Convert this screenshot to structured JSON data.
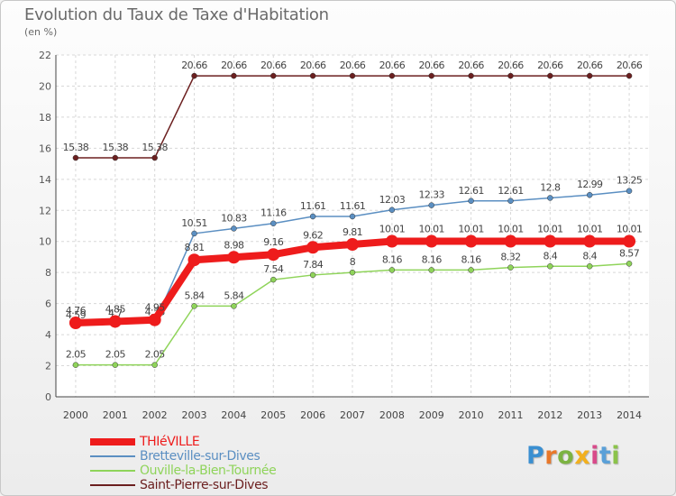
{
  "title": "Evolution du Taux de Taxe d'Habitation",
  "unit_label": "(en %)",
  "logo_text": [
    "P",
    "r",
    "o",
    "x",
    "i",
    "t",
    "i"
  ],
  "chart_data": {
    "type": "line",
    "title": "Evolution du Taux de Taxe d'Habitation",
    "ylabel": "(en %)",
    "xlabel": "",
    "ylim": [
      0,
      22
    ],
    "yticks": [
      0,
      2,
      4,
      6,
      8,
      10,
      12,
      14,
      16,
      18,
      20,
      22
    ],
    "grid": true,
    "legend_position": "bottom-left",
    "categories": [
      "2000",
      "2001",
      "2002",
      "2003",
      "2004",
      "2005",
      "2006",
      "2007",
      "2008",
      "2009",
      "2010",
      "2011",
      "2012",
      "2013",
      "2014"
    ],
    "series": [
      {
        "name": "Saint-Pierre-sur-Dives",
        "color": "#6b1f1f",
        "values": [
          15.38,
          15.38,
          15.38,
          20.66,
          20.66,
          20.66,
          20.66,
          20.66,
          20.66,
          20.66,
          20.66,
          20.66,
          20.66,
          20.66,
          20.66
        ],
        "labels": [
          "15.38",
          "15.38",
          "15.38",
          "20.66",
          "20.66",
          "20.66",
          "20.66",
          "20.66",
          "20.66",
          "20.66",
          "20.66",
          "20.66",
          "20.66",
          "20.66",
          "20.66"
        ]
      },
      {
        "name": "Bretteville-sur-Dives",
        "color": "#5b8fc2",
        "values": [
          4.59,
          4.7,
          4.78,
          10.51,
          10.83,
          11.16,
          11.61,
          11.61,
          12.03,
          12.33,
          12.61,
          12.61,
          12.8,
          12.99,
          13.25
        ],
        "labels": [
          "4.59",
          "4.7",
          "4.78",
          "10.51",
          "10.83",
          "11.16",
          "11.61",
          "11.61",
          "12.03",
          "12.33",
          "12.61",
          "12.61",
          "12.8",
          "12.99",
          "13.25"
        ]
      },
      {
        "name": "Ouville-la-Bien-Tournée",
        "color": "#8fd45a",
        "values": [
          2.05,
          2.05,
          2.05,
          5.84,
          5.84,
          7.54,
          7.84,
          8,
          8.16,
          8.16,
          8.16,
          8.32,
          8.4,
          8.4,
          8.57
        ],
        "labels": [
          "2.05",
          "2.05",
          "2.05",
          "5.84",
          "5.84",
          "7.54",
          "7.84",
          "8",
          "8.16",
          "8.16",
          "8.16",
          "8.32",
          "8.4",
          "8.4",
          "8.57"
        ]
      },
      {
        "name": "THIéVILLE",
        "color": "#ee1c1c",
        "values": [
          4.76,
          4.85,
          4.95,
          8.81,
          8.98,
          9.16,
          9.62,
          9.81,
          10.01,
          10.01,
          10.01,
          10.01,
          10.01,
          10.01,
          10.01
        ],
        "labels": [
          "4.76",
          "4.85",
          "4.95",
          "8.81",
          "8.98",
          "9.16",
          "9.62",
          "9.81",
          "10.01",
          "10.01",
          "10.01",
          "10.01",
          "10.01",
          "10.01",
          "10.01"
        ]
      }
    ]
  }
}
